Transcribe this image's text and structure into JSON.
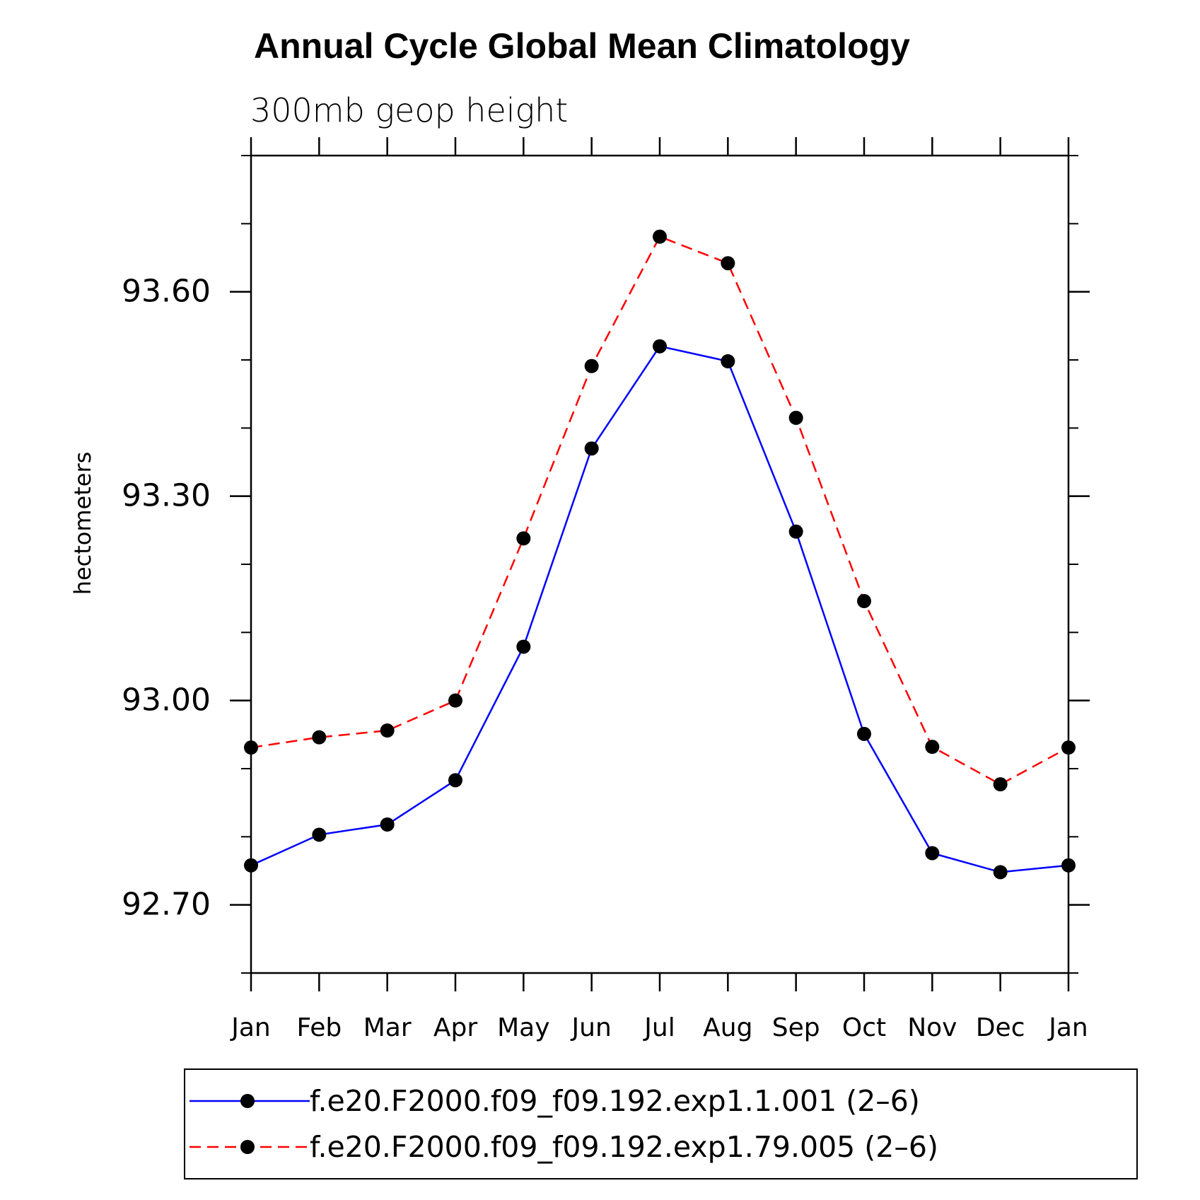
{
  "chart_data": {
    "type": "line",
    "title": "Annual Cycle Global Mean Climatology",
    "subtitle": "300mb geop height",
    "ylabel": "hectometers",
    "xlabel": "",
    "categories": [
      "Jan",
      "Feb",
      "Mar",
      "Apr",
      "May",
      "Jun",
      "Jul",
      "Aug",
      "Sep",
      "Oct",
      "Nov",
      "Dec",
      "Jan"
    ],
    "ylim": [
      92.6,
      93.8
    ],
    "yticks": [
      92.7,
      93.0,
      93.3,
      93.6
    ],
    "ytick_labels": [
      "92.70",
      "93.00",
      "93.30",
      "93.60"
    ],
    "y_minor_step": 0.1,
    "grid": false,
    "legend_position": "bottom",
    "series": [
      {
        "name": "f.e20.F2000.f09_f09.192.exp1.1.001 (2–6)",
        "color": "#0000ff",
        "line_style": "solid",
        "marker": "filled-circle",
        "values": [
          92.758,
          92.803,
          92.818,
          92.883,
          93.079,
          93.37,
          93.52,
          93.498,
          93.248,
          92.951,
          92.776,
          92.748,
          92.758
        ]
      },
      {
        "name": "f.e20.F2000.f09_f09.192.exp1.79.005 (2–6)",
        "color": "#ff0000",
        "line_style": "dashed",
        "marker": "filled-circle",
        "values": [
          92.931,
          92.946,
          92.956,
          93.0,
          93.238,
          93.491,
          93.681,
          93.642,
          93.415,
          93.146,
          92.932,
          92.877,
          92.931
        ]
      }
    ]
  }
}
